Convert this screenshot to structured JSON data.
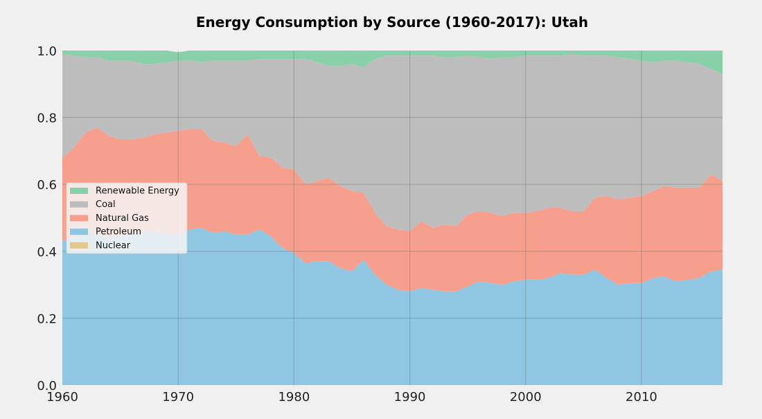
{
  "chart_data": {
    "type": "area",
    "title": "Energy Consumption by Source (1960-2017): Utah",
    "xlabel": "",
    "ylabel": "",
    "xlim": [
      1960,
      2017
    ],
    "ylim": [
      0,
      1.0
    ],
    "x_ticks": [
      1960,
      1970,
      1980,
      1990,
      2000,
      2010
    ],
    "y_ticks": [
      0.0,
      0.2,
      0.4,
      0.6,
      0.8,
      1.0
    ],
    "x_tick_labels": [
      "1960",
      "1970",
      "1980",
      "1990",
      "2000",
      "2010"
    ],
    "y_tick_labels": [
      "0.0",
      "0.2",
      "0.4",
      "0.6",
      "0.8",
      "1.0"
    ],
    "grid": true,
    "legend_position": "center-left",
    "stacked": true,
    "x": [
      1960,
      1961,
      1962,
      1963,
      1964,
      1965,
      1966,
      1967,
      1968,
      1969,
      1970,
      1971,
      1972,
      1973,
      1974,
      1975,
      1976,
      1977,
      1978,
      1979,
      1980,
      1981,
      1982,
      1983,
      1984,
      1985,
      1986,
      1987,
      1988,
      1989,
      1990,
      1991,
      1992,
      1993,
      1994,
      1995,
      1996,
      1997,
      1998,
      1999,
      2000,
      2001,
      2002,
      2003,
      2004,
      2005,
      2006,
      2007,
      2008,
      2009,
      2010,
      2011,
      2012,
      2013,
      2014,
      2015,
      2016,
      2017
    ],
    "series": [
      {
        "name": "Nuclear",
        "color": "#e5c98c",
        "values": [
          0,
          0,
          0,
          0,
          0,
          0,
          0,
          0,
          0,
          0,
          0,
          0,
          0,
          0,
          0,
          0,
          0,
          0,
          0,
          0,
          0,
          0,
          0,
          0,
          0,
          0,
          0,
          0,
          0,
          0,
          0,
          0,
          0,
          0,
          0,
          0,
          0,
          0,
          0,
          0,
          0,
          0,
          0,
          0,
          0,
          0,
          0,
          0,
          0,
          0,
          0,
          0,
          0,
          0,
          0,
          0,
          0,
          0
        ]
      },
      {
        "name": "Petroleum",
        "color": "#8fc7e3",
        "values": [
          0.43,
          0.44,
          0.45,
          0.45,
          0.44,
          0.45,
          0.45,
          0.46,
          0.46,
          0.45,
          0.45,
          0.465,
          0.47,
          0.455,
          0.46,
          0.45,
          0.45,
          0.465,
          0.445,
          0.41,
          0.395,
          0.365,
          0.37,
          0.37,
          0.35,
          0.34,
          0.375,
          0.33,
          0.3,
          0.285,
          0.28,
          0.29,
          0.285,
          0.28,
          0.28,
          0.295,
          0.31,
          0.305,
          0.3,
          0.31,
          0.315,
          0.315,
          0.32,
          0.335,
          0.33,
          0.33,
          0.345,
          0.32,
          0.3,
          0.305,
          0.305,
          0.32,
          0.325,
          0.31,
          0.315,
          0.32,
          0.34,
          0.345
        ]
      },
      {
        "name": "Natural Gas",
        "color": "#f79f8d",
        "values": [
          0.25,
          0.27,
          0.305,
          0.32,
          0.305,
          0.285,
          0.285,
          0.28,
          0.29,
          0.305,
          0.31,
          0.3,
          0.295,
          0.275,
          0.265,
          0.265,
          0.3,
          0.22,
          0.235,
          0.24,
          0.25,
          0.235,
          0.24,
          0.25,
          0.245,
          0.24,
          0.2,
          0.185,
          0.175,
          0.18,
          0.18,
          0.2,
          0.185,
          0.2,
          0.195,
          0.215,
          0.21,
          0.21,
          0.205,
          0.205,
          0.2,
          0.205,
          0.21,
          0.195,
          0.19,
          0.19,
          0.215,
          0.245,
          0.255,
          0.255,
          0.26,
          0.26,
          0.27,
          0.28,
          0.275,
          0.27,
          0.29,
          0.265
        ]
      },
      {
        "name": "Coal",
        "color": "#bdbdbd",
        "values": [
          0.31,
          0.275,
          0.225,
          0.21,
          0.225,
          0.235,
          0.235,
          0.22,
          0.21,
          0.21,
          0.21,
          0.205,
          0.2,
          0.24,
          0.245,
          0.255,
          0.22,
          0.29,
          0.295,
          0.325,
          0.33,
          0.375,
          0.355,
          0.335,
          0.36,
          0.38,
          0.375,
          0.46,
          0.51,
          0.52,
          0.525,
          0.495,
          0.515,
          0.5,
          0.505,
          0.475,
          0.46,
          0.46,
          0.475,
          0.465,
          0.47,
          0.465,
          0.455,
          0.455,
          0.47,
          0.465,
          0.425,
          0.42,
          0.425,
          0.415,
          0.405,
          0.385,
          0.375,
          0.38,
          0.375,
          0.37,
          0.315,
          0.32
        ]
      },
      {
        "name": "Renewable Energy",
        "color": "#88d1a8",
        "values": [
          0.01,
          0.015,
          0.02,
          0.02,
          0.03,
          0.03,
          0.03,
          0.04,
          0.04,
          0.035,
          0.025,
          0.03,
          0.035,
          0.03,
          0.03,
          0.03,
          0.03,
          0.025,
          0.025,
          0.025,
          0.025,
          0.025,
          0.035,
          0.045,
          0.045,
          0.04,
          0.05,
          0.025,
          0.015,
          0.015,
          0.015,
          0.015,
          0.015,
          0.02,
          0.02,
          0.015,
          0.02,
          0.025,
          0.02,
          0.02,
          0.015,
          0.015,
          0.015,
          0.015,
          0.01,
          0.015,
          0.015,
          0.015,
          0.02,
          0.025,
          0.03,
          0.035,
          0.03,
          0.03,
          0.035,
          0.04,
          0.055,
          0.07
        ]
      }
    ],
    "legend_order": [
      "Renewable Energy",
      "Coal",
      "Natural Gas",
      "Petroleum",
      "Nuclear"
    ]
  }
}
